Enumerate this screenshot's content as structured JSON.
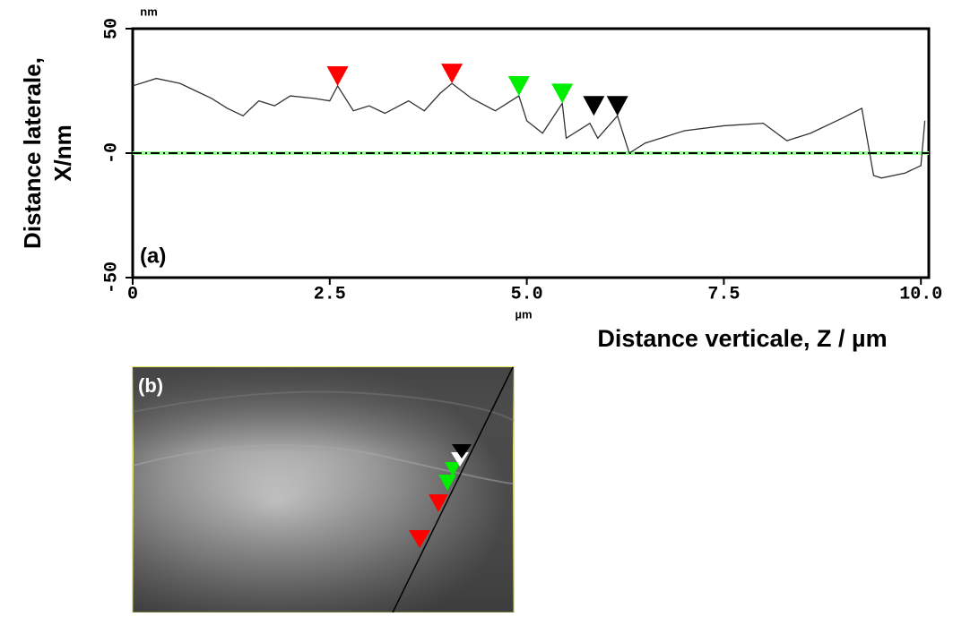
{
  "chart_data": {
    "type": "line",
    "unit_y": "nm",
    "unit_x": "µm",
    "ylabel": [
      "Distance laterale,",
      "X/nm"
    ],
    "xlabel": "Distance verticale, Z / µm",
    "annotation": "(a)",
    "xlim": [
      0,
      10.1
    ],
    "ylim": [
      -50,
      50
    ],
    "xticks": [
      0,
      2.5,
      {
        "value": 5,
        "label": "5.0"
      },
      7.5,
      {
        "value": 10,
        "label": "10.0"
      }
    ],
    "yticks": [
      -50,
      {
        "value": 0,
        "label": "-0"
      },
      50
    ],
    "reference_line": 0,
    "series": [
      {
        "color": "#333333",
        "x": [
          0,
          0.3,
          0.6,
          0.8,
          1.0,
          1.2,
          1.4,
          1.6,
          1.8,
          2.0,
          2.3,
          2.5,
          2.6,
          2.8,
          3.0,
          3.2,
          3.5,
          3.7,
          3.9,
          4.05,
          4.3,
          4.6,
          4.9,
          5.0,
          5.2,
          5.45,
          5.5,
          5.8,
          5.9,
          6.15,
          6.3,
          6.5,
          7.0,
          7.5,
          8.0,
          8.3,
          8.6,
          9.0,
          9.25,
          9.4,
          9.5,
          9.8,
          10.0,
          10.05
        ],
        "values": [
          27,
          30,
          28,
          25,
          22,
          18,
          15,
          21,
          19,
          23,
          22,
          21,
          27,
          17,
          19,
          16,
          21,
          17,
          24,
          28,
          22,
          17,
          23,
          13,
          8,
          20,
          6,
          12,
          6,
          15,
          0,
          4,
          9,
          11,
          12,
          5,
          8,
          14,
          18,
          -9,
          -10,
          -8,
          -5,
          13
        ]
      }
    ],
    "markers": {
      "x": [
        2.6,
        4.05,
        4.9,
        5.45,
        5.85,
        6.15
      ],
      "values": [
        27,
        28,
        23,
        20,
        15,
        15
      ],
      "colors": [
        "#ff0000",
        "#ff0000",
        "#00ee00",
        "#00ee00",
        "#000000",
        "#000000"
      ]
    }
  },
  "panel_b": {
    "label": "(b)"
  }
}
